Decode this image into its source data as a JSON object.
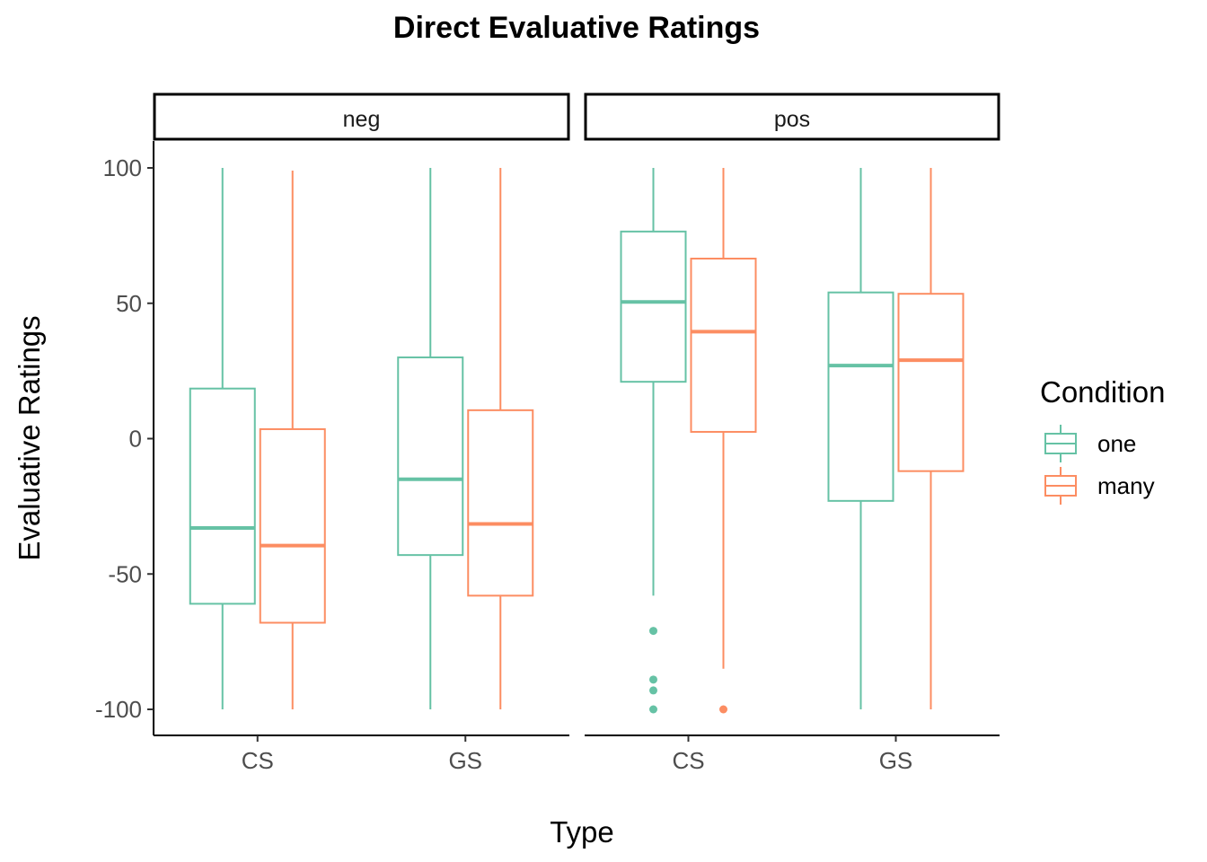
{
  "chart_data": {
    "type": "boxplot",
    "title": "Direct Evaluative Ratings",
    "xlabel": "Type",
    "ylabel": "Evaluative Ratings",
    "ylim": [
      -110,
      110
    ],
    "y_ticks": [
      100,
      50,
      0,
      -50,
      -100
    ],
    "y_tick_labels": [
      "100",
      "50",
      "0",
      "-50",
      "-100"
    ],
    "grid": false,
    "facet_by": "valence",
    "facets": [
      "neg",
      "pos"
    ],
    "categories": [
      "CS",
      "GS"
    ],
    "legend": {
      "title": "Condition",
      "position": "right",
      "entries": [
        "one",
        "many"
      ]
    },
    "colors": {
      "one": "#66c2a5",
      "many": "#fc8d62"
    },
    "series": [
      {
        "name": "one",
        "boxes": {
          "neg": {
            "CS": {
              "min": -100,
              "q1": -61,
              "median": -33,
              "q3": 18.5,
              "max": 100,
              "outliers": []
            },
            "GS": {
              "min": -100,
              "q1": -43,
              "median": -15,
              "q3": 30,
              "max": 100,
              "outliers": []
            }
          },
          "pos": {
            "CS": {
              "min": -58,
              "q1": 21,
              "median": 50.5,
              "q3": 76.5,
              "max": 100,
              "outliers": [
                -71,
                -89,
                -93,
                -100
              ]
            },
            "GS": {
              "min": -100,
              "q1": -23,
              "median": 27,
              "q3": 54,
              "max": 100,
              "outliers": []
            }
          }
        }
      },
      {
        "name": "many",
        "boxes": {
          "neg": {
            "CS": {
              "min": -100,
              "q1": -68,
              "median": -39.5,
              "q3": 3.5,
              "max": 99,
              "outliers": []
            },
            "GS": {
              "min": -100,
              "q1": -58,
              "median": -31.5,
              "q3": 10.5,
              "max": 100,
              "outliers": []
            }
          },
          "pos": {
            "CS": {
              "min": -85,
              "q1": 2.5,
              "median": 39.5,
              "q3": 66.5,
              "max": 100,
              "outliers": [
                -100
              ]
            },
            "GS": {
              "min": -100,
              "q1": -12,
              "median": 29,
              "q3": 53.5,
              "max": 100,
              "outliers": []
            }
          }
        }
      }
    ]
  }
}
